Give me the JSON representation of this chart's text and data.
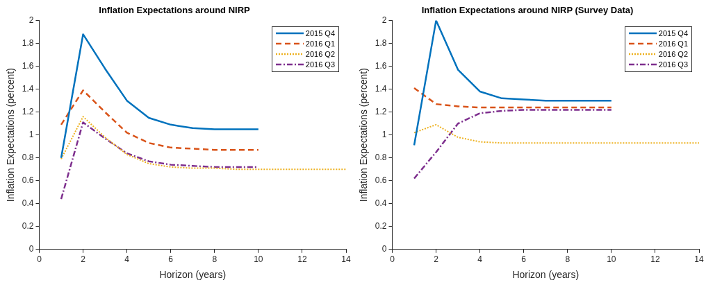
{
  "chart_data": [
    {
      "type": "line",
      "title": "Inflation Expectations around NIRP",
      "xlabel": "Horizon (years)",
      "ylabel": "Inflation Expectations (percent)",
      "x": [
        1,
        2,
        3,
        4,
        5,
        6,
        7,
        8,
        9,
        10
      ],
      "xlim": [
        0,
        14
      ],
      "xticks": [
        0,
        2,
        4,
        6,
        8,
        10,
        12,
        14
      ],
      "ylim": [
        0,
        2
      ],
      "yticks": [
        0,
        0.2,
        0.4,
        0.6,
        0.8,
        1,
        1.2,
        1.4,
        1.6,
        1.8,
        2
      ],
      "grid": false,
      "legend": "top right",
      "marker": "none",
      "series": [
        {
          "name": "2015 Q4",
          "color": "#0072bd",
          "line_style": "solid",
          "values": [
            0.8,
            1.88,
            1.58,
            1.3,
            1.15,
            1.09,
            1.06,
            1.05,
            1.05,
            1.05
          ]
        },
        {
          "name": "2016 Q1",
          "color": "#d95319",
          "line_style": "dashed",
          "values": [
            1.09,
            1.39,
            1.2,
            1.02,
            0.93,
            0.89,
            0.88,
            0.87,
            0.87,
            0.87
          ]
        },
        {
          "name": "2016 Q2",
          "color": "#edb120",
          "line_style": "dotted",
          "x": [
            1,
            2,
            3,
            4,
            5,
            6,
            7,
            8,
            9,
            10,
            11,
            12,
            13,
            14
          ],
          "values": [
            0.79,
            1.16,
            0.98,
            0.83,
            0.75,
            0.72,
            0.71,
            0.71,
            0.7,
            0.7,
            0.7,
            0.7,
            0.7,
            0.7
          ]
        },
        {
          "name": "2016 Q3",
          "color": "#7e2f8e",
          "line_style": "dashdot",
          "values": [
            0.44,
            1.11,
            0.97,
            0.84,
            0.77,
            0.74,
            0.73,
            0.72,
            0.72,
            0.72
          ]
        }
      ]
    },
    {
      "type": "line",
      "title": "Inflation Expectations around NIRP (Survey Data)",
      "xlabel": "Horizon (years)",
      "ylabel": "Inflation Expectations (percent)",
      "x": [
        1,
        2,
        3,
        4,
        5,
        6,
        7,
        8,
        9,
        10
      ],
      "xlim": [
        0,
        14
      ],
      "xticks": [
        0,
        2,
        4,
        6,
        8,
        10,
        12,
        14
      ],
      "ylim": [
        0,
        2
      ],
      "yticks": [
        0,
        0.2,
        0.4,
        0.6,
        0.8,
        1,
        1.2,
        1.4,
        1.6,
        1.8,
        2
      ],
      "grid": false,
      "legend": "top right",
      "marker": "none",
      "series": [
        {
          "name": "2015 Q4",
          "color": "#0072bd",
          "line_style": "solid",
          "values": [
            0.91,
            2.0,
            1.57,
            1.38,
            1.32,
            1.31,
            1.3,
            1.3,
            1.3,
            1.3
          ]
        },
        {
          "name": "2016 Q1",
          "color": "#d95319",
          "line_style": "dashed",
          "values": [
            1.41,
            1.27,
            1.25,
            1.24,
            1.24,
            1.24,
            1.24,
            1.24,
            1.24,
            1.24
          ]
        },
        {
          "name": "2016 Q2",
          "color": "#edb120",
          "line_style": "dotted",
          "x": [
            1,
            2,
            3,
            4,
            5,
            6,
            7,
            8,
            9,
            10,
            11,
            12,
            13,
            14
          ],
          "values": [
            1.02,
            1.09,
            0.98,
            0.94,
            0.93,
            0.93,
            0.93,
            0.93,
            0.93,
            0.93,
            0.93,
            0.93,
            0.93,
            0.93
          ]
        },
        {
          "name": "2016 Q3",
          "color": "#7e2f8e",
          "line_style": "dashdot",
          "values": [
            0.62,
            0.85,
            1.1,
            1.19,
            1.21,
            1.22,
            1.22,
            1.22,
            1.22,
            1.22
          ]
        }
      ]
    }
  ]
}
